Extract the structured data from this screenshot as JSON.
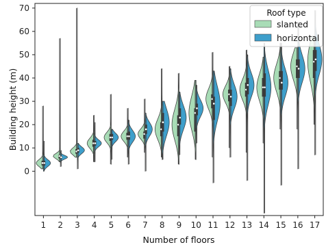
{
  "chart_data": {
    "type": "violin",
    "split": true,
    "title": "",
    "xlabel": "Number of floors",
    "ylabel": "Building height (m)",
    "categories": [
      "1",
      "2",
      "3",
      "4",
      "5",
      "6",
      "7",
      "8",
      "9",
      "10",
      "11",
      "12",
      "13",
      "14",
      "15",
      "16",
      "17"
    ],
    "yticks": [
      0,
      10,
      20,
      30,
      40,
      50,
      60,
      70
    ],
    "ylim": [
      -19,
      72
    ],
    "grid": false,
    "legend": {
      "title": "Roof type",
      "placement": "top-right",
      "entries": [
        {
          "label": "slanted",
          "color": "#a8dcb6"
        },
        {
          "label": "horizontal",
          "color": "#3e9fcb"
        }
      ]
    },
    "series": [
      {
        "name": "slanted",
        "color": "#a8dcb6",
        "range": [
          [
            1,
            28
          ],
          [
            4,
            57
          ],
          [
            6,
            70
          ],
          [
            4,
            24
          ],
          [
            3,
            33
          ],
          [
            6,
            27
          ],
          [
            8,
            31
          ],
          [
            6,
            44
          ],
          [
            3,
            42
          ],
          [
            5,
            39
          ],
          [
            6,
            51
          ],
          [
            10,
            45
          ],
          [
            8,
            52
          ],
          [
            12,
            49
          ],
          [
            18,
            55
          ],
          [
            18,
            53
          ],
          [
            20,
            58
          ]
        ],
        "median": [
          3.5,
          6.5,
          8.5,
          12,
          14.5,
          15,
          16,
          18,
          20,
          25,
          31,
          33,
          35,
          36,
          40,
          45,
          47
        ],
        "iqr": [
          [
            2.5,
            4.5
          ],
          [
            5.5,
            7
          ],
          [
            7.5,
            9.5
          ],
          [
            10.5,
            13.5
          ],
          [
            13,
            16
          ],
          [
            13.5,
            16.5
          ],
          [
            14,
            17
          ],
          [
            15,
            21
          ],
          [
            15,
            24
          ],
          [
            17,
            27
          ],
          [
            27,
            33
          ],
          [
            30,
            35
          ],
          [
            32,
            38
          ],
          [
            32,
            40
          ],
          [
            35,
            43
          ],
          [
            40,
            48
          ],
          [
            40,
            52
          ]
        ]
      },
      {
        "name": "horizontal",
        "color": "#3e9fcb",
        "range": [
          [
            0,
            13
          ],
          [
            2,
            9
          ],
          [
            1,
            12
          ],
          [
            4,
            21
          ],
          [
            5,
            18
          ],
          [
            3,
            22
          ],
          [
            0,
            25
          ],
          [
            5,
            30
          ],
          [
            7,
            34
          ],
          [
            12,
            37
          ],
          [
            -5,
            43
          ],
          [
            6,
            44
          ],
          [
            -4,
            50
          ],
          [
            -18,
            55
          ],
          [
            -6,
            55
          ],
          [
            1,
            64
          ],
          [
            7,
            69
          ]
        ],
        "median": [
          3.5,
          6,
          9,
          12,
          14.5,
          15,
          18,
          21,
          23,
          27,
          29,
          32,
          37,
          36,
          38,
          44,
          48
        ],
        "iqr": [
          [
            2.5,
            4.5
          ],
          [
            5.5,
            6.5
          ],
          [
            8,
            10
          ],
          [
            11,
            13
          ],
          [
            13.5,
            16
          ],
          [
            13.5,
            17
          ],
          [
            16,
            20
          ],
          [
            17,
            25
          ],
          [
            20,
            27
          ],
          [
            24,
            29
          ],
          [
            22,
            32
          ],
          [
            28,
            35
          ],
          [
            33,
            40
          ],
          [
            32,
            42
          ],
          [
            35,
            43
          ],
          [
            40,
            48
          ],
          [
            43,
            52
          ]
        ]
      }
    ]
  }
}
